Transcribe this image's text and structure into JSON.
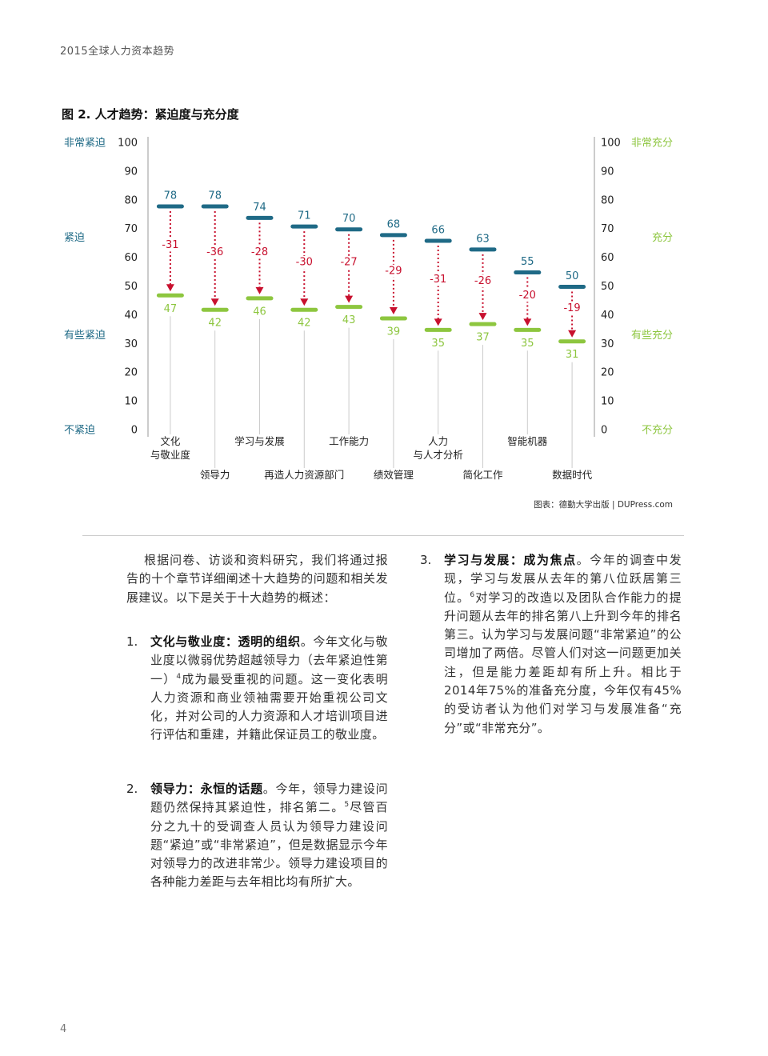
{
  "header": {
    "title": "2015全球人力资本趋势"
  },
  "chart_data": {
    "type": "dumbbell",
    "title": "图 2. 人才趋势：紧迫度与充分度",
    "categories": [
      "文化\n与敬业度",
      "领导力",
      "学习与发展",
      "再造人力资源部门",
      "工作能力",
      "绩效管理",
      "人力\n与人才分析",
      "简化工作",
      "智能机器",
      "数据时代"
    ],
    "series": [
      {
        "color": "#1f6a86",
        "values": [
          78,
          78,
          74,
          71,
          70,
          68,
          66,
          63,
          55,
          50
        ]
      },
      {
        "color": "#8dc63f",
        "values": [
          47,
          42,
          46,
          42,
          43,
          39,
          35,
          37,
          35,
          31
        ]
      }
    ],
    "differences": {
      "color": "#c8102e",
      "values": [
        -31,
        -36,
        -28,
        -30,
        -27,
        -29,
        -31,
        -26,
        -20,
        -19
      ]
    },
    "ylim": [
      0,
      100
    ],
    "yticks": [
      0,
      10,
      20,
      30,
      40,
      50,
      60,
      70,
      80,
      90,
      100
    ],
    "y2lim": [
      0,
      100
    ],
    "y2ticks": [
      0,
      10,
      20,
      30,
      40,
      50,
      60,
      70,
      80,
      90,
      100
    ],
    "y_annotations": [
      {
        "value": 100,
        "label": "非常紧迫"
      },
      {
        "value": 67,
        "label": "紧迫"
      },
      {
        "value": 33,
        "label": "有些紧迫"
      },
      {
        "value": 0,
        "label": "不紧迫"
      }
    ],
    "y2_annotations": [
      {
        "value": 100,
        "label": "非常充分"
      },
      {
        "value": 67,
        "label": "充分"
      },
      {
        "value": 33,
        "label": "有些充分"
      },
      {
        "value": 0,
        "label": "不充分"
      }
    ],
    "source": "图表：德勤大学出版 | DUPress.com"
  },
  "body": {
    "intro": "根据问卷、访谈和资料研究，我们将通过报告的十个章节详细阐述十大趋势的问题和相关发展建议。以下是关于十大趋势的概述：",
    "items": [
      {
        "number": "1.",
        "title": "文化与敬业度：透明的组织",
        "text_before": "。今年文化与敬业度以微弱优势超越领导力（去年紧迫性第一）",
        "note": "4",
        "text_after": "成为最受重视的问题。这一变化表明人力资源和商业领袖需要开始重视公司文化，并对公司的人力资源和人才培训项目进行评估和重建，并籍此保证员工的敬业度。"
      },
      {
        "number": "2.",
        "title": "领导力：永恒的话题",
        "text_before": "。今年，领导力建设问题仍然保持其紧迫性，排名第二。",
        "note": "5",
        "text_after": "尽管百分之九十的受调查人员认为领导力建设问题“紧迫”或“非常紧迫”，但是数据显示今年对领导力的改进非常少。领导力建设项目的各种能力差距与去年相比均有所扩大。"
      },
      {
        "number": "3.",
        "title": "学习与发展：成为焦点",
        "text_before": "。今年的调查中发现，学习与发展从去年的第八位跃居第三位。",
        "note": "6",
        "text_after": "对学习的改造以及团队合作能力的提升问题从去年的排名第八上升到今年的排名第三。认为学习与发展问题“非常紧迫”的公司增加了两倍。尽管人们对这一问题更加关注，但是能力差距却有所上升。相比于2014年75%的准备充分度，今年仅有45%的受访者认为他们对学习与发展准备“充分”或“非常充分”。"
      }
    ]
  },
  "footer": {
    "page": "4"
  }
}
